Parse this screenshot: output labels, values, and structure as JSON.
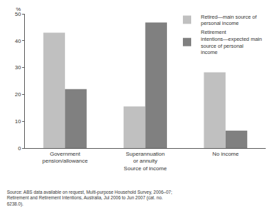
{
  "chart_data": {
    "type": "bar",
    "y_label": "%",
    "x_label": "Source of income",
    "note": "Source: ABS data available on request, Multi-purpose Household Survey, 2006–07; Retirement and Retirement Intentions, Australia, Jul 2006 to Jun 2007 (cat. no. 6238.0).",
    "categories": [
      "Government pension/allowance",
      "Superannuation or annuity",
      "No income"
    ],
    "series": [
      {
        "name": "Retired—main source of personal income",
        "color": "#c0c0c0",
        "values": [
          43,
          15.5,
          28.2
        ]
      },
      {
        "name": "Retirement intentions—expected main source of personal income",
        "color": "#808080",
        "values": [
          22,
          46.8,
          6.5
        ]
      }
    ],
    "ylim": [
      0,
      50
    ],
    "yticks": [
      0,
      10,
      20,
      30,
      40,
      50
    ],
    "grid": true,
    "legend": "top right"
  }
}
